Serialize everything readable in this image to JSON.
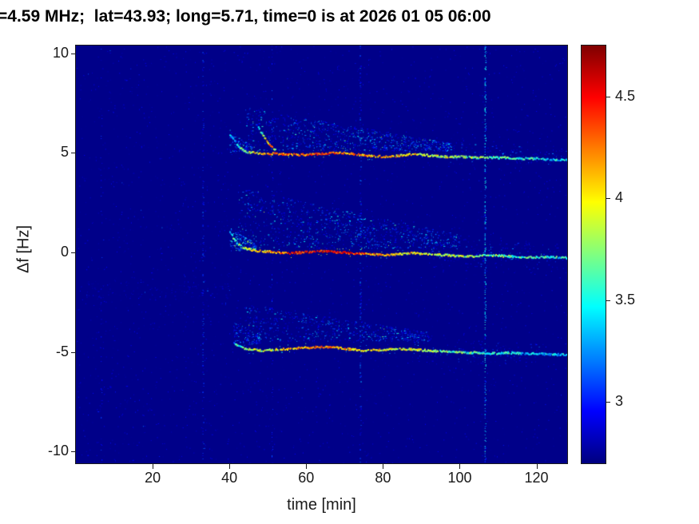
{
  "chart_data": {
    "type": "heatmap",
    "title": "=4.59 MHz;  lat=43.93; long=5.71, time=0 is at 2026 01 05 06:00",
    "xlabel": "time [min]",
    "ylabel": "Δf [Hz]",
    "xlim": [
      0,
      128
    ],
    "ylim": [
      -10.6,
      10.4
    ],
    "xticks": [
      20,
      40,
      60,
      80,
      100,
      120
    ],
    "yticks": [
      10,
      5,
      0,
      -5,
      -10
    ],
    "grid": false,
    "colorbar": {
      "position": "right",
      "colormap": "jet",
      "clim": [
        2.7,
        4.75
      ],
      "ticks": [
        3,
        3.5,
        4,
        4.5
      ]
    },
    "noise": {
      "count": 2600,
      "v": [
        2.72,
        3.0
      ]
    },
    "vertical_lines": [
      {
        "x": 6.5,
        "density": 0.1,
        "v": [
          2.8,
          3.1
        ]
      },
      {
        "x": 33,
        "density": 0.22,
        "v": [
          2.8,
          3.2
        ]
      },
      {
        "x": 51,
        "density": 0.1,
        "v": [
          2.8,
          3.15
        ]
      },
      {
        "x": 74,
        "density": 0.25,
        "v": [
          2.8,
          3.3
        ]
      },
      {
        "x": 106.5,
        "density": 0.5,
        "v": [
          2.9,
          3.6
        ]
      }
    ],
    "clouds": [
      {
        "t": [
          44,
          98
        ],
        "f_bottom": 5.1,
        "f_top_start": 7.3,
        "f_top_end": 5.5,
        "count": 850,
        "v": [
          2.85,
          3.7
        ]
      },
      {
        "t": [
          42,
          100
        ],
        "f_bottom": 0.2,
        "f_top_start": 3.3,
        "f_top_end": 0.9,
        "count": 950,
        "v": [
          2.85,
          3.7
        ]
      },
      {
        "t": [
          44,
          92
        ],
        "f_bottom": -4.45,
        "f_top_start": -2.6,
        "f_top_end": -4.0,
        "count": 600,
        "v": [
          2.85,
          3.6
        ]
      },
      {
        "t": [
          95,
          128
        ],
        "f_bottom": 4.45,
        "f_top_start": 5.6,
        "f_top_end": 5.2,
        "count": 130,
        "v": [
          2.8,
          3.3
        ]
      },
      {
        "t": [
          92,
          128
        ],
        "f_bottom": -0.9,
        "f_top_start": 0.8,
        "f_top_end": 0.4,
        "count": 140,
        "v": [
          2.8,
          3.3
        ]
      },
      {
        "t": [
          88,
          122
        ],
        "f_bottom": -5.6,
        "f_top_start": -4.2,
        "f_top_end": -4.6,
        "count": 110,
        "v": [
          2.8,
          3.3
        ]
      },
      {
        "t": [
          40,
          47
        ],
        "f_bottom": 0.1,
        "f_top_start": 1.3,
        "f_top_end": 0.4,
        "count": 160,
        "v": [
          3.0,
          3.9
        ]
      },
      {
        "t": [
          40,
          46
        ],
        "f_bottom": 5.05,
        "f_top_start": 6.2,
        "f_top_end": 5.3,
        "count": 100,
        "v": [
          2.9,
          3.6
        ]
      },
      {
        "t": [
          41,
          48
        ],
        "f_bottom": -4.6,
        "f_top_start": -3.4,
        "f_top_end": -4.2,
        "count": 110,
        "v": [
          2.9,
          3.5
        ]
      },
      {
        "t": [
          2,
          40
        ],
        "f_bottom": -2.3,
        "f_top_start": -1.4,
        "f_top_end": -1.5,
        "count": 130,
        "v": [
          2.75,
          3.05
        ]
      },
      {
        "t": [
          2,
          40
        ],
        "f_bottom": -10.4,
        "f_top_start": 10.3,
        "f_top_end": 10.3,
        "count": 180,
        "v": [
          2.75,
          3.05
        ]
      }
    ],
    "traces": [
      {
        "name": "upper-doppler-trace",
        "points": [
          [
            40,
            5.95,
            3.2
          ],
          [
            42,
            5.4,
            3.5
          ],
          [
            44,
            5.1,
            3.7
          ],
          [
            48,
            5.0,
            4.05
          ],
          [
            52,
            5.0,
            4.25
          ],
          [
            56,
            4.95,
            4.3
          ],
          [
            60,
            4.95,
            4.3
          ],
          [
            64,
            5.0,
            4.3
          ],
          [
            68,
            5.05,
            4.25
          ],
          [
            72,
            5.0,
            4.2
          ],
          [
            76,
            4.9,
            4.15
          ],
          [
            80,
            4.85,
            4.2
          ],
          [
            84,
            4.9,
            4.05
          ],
          [
            88,
            5.0,
            4.0
          ],
          [
            92,
            4.9,
            3.9
          ],
          [
            96,
            4.85,
            3.85
          ],
          [
            100,
            4.85,
            3.8
          ],
          [
            104,
            4.8,
            3.7
          ],
          [
            108,
            4.8,
            3.65
          ],
          [
            112,
            4.8,
            3.6
          ],
          [
            116,
            4.75,
            3.55
          ],
          [
            120,
            4.75,
            3.5
          ],
          [
            124,
            4.7,
            3.45
          ],
          [
            128,
            4.7,
            3.4
          ]
        ]
      },
      {
        "name": "upper-fold-segment",
        "points": [
          [
            47,
            6.45,
            3.2
          ],
          [
            48,
            6.1,
            3.6
          ],
          [
            49,
            5.8,
            3.9
          ],
          [
            50,
            5.5,
            4.15
          ],
          [
            51,
            5.3,
            4.1
          ],
          [
            52,
            5.15,
            3.9
          ]
        ]
      },
      {
        "name": "center-doppler-trace",
        "points": [
          [
            40,
            1.1,
            3.3
          ],
          [
            41,
            0.7,
            3.6
          ],
          [
            42,
            0.45,
            3.7
          ],
          [
            44,
            0.25,
            3.8
          ],
          [
            46,
            0.15,
            3.9
          ],
          [
            48,
            0.1,
            4.0
          ],
          [
            52,
            0.05,
            4.2
          ],
          [
            56,
            0.0,
            4.4
          ],
          [
            60,
            0.05,
            4.5
          ],
          [
            64,
            0.1,
            4.5
          ],
          [
            68,
            0.05,
            4.45
          ],
          [
            72,
            0.0,
            4.4
          ],
          [
            76,
            -0.05,
            4.2
          ],
          [
            80,
            -0.1,
            4.1
          ],
          [
            84,
            -0.05,
            4.0
          ],
          [
            88,
            0.0,
            4.0
          ],
          [
            92,
            -0.05,
            3.9
          ],
          [
            96,
            -0.1,
            3.85
          ],
          [
            100,
            -0.15,
            3.8
          ],
          [
            104,
            -0.15,
            3.75
          ],
          [
            108,
            -0.1,
            3.7
          ],
          [
            112,
            -0.15,
            3.65
          ],
          [
            116,
            -0.2,
            3.6
          ],
          [
            120,
            -0.2,
            3.55
          ],
          [
            124,
            -0.2,
            3.5
          ],
          [
            128,
            -0.25,
            3.45
          ]
        ]
      },
      {
        "name": "lower-doppler-trace",
        "points": [
          [
            41,
            -4.5,
            3.3
          ],
          [
            42,
            -4.65,
            3.5
          ],
          [
            44,
            -4.8,
            3.7
          ],
          [
            48,
            -4.9,
            3.8
          ],
          [
            52,
            -4.85,
            3.9
          ],
          [
            56,
            -4.8,
            4.1
          ],
          [
            60,
            -4.75,
            4.2
          ],
          [
            64,
            -4.7,
            4.25
          ],
          [
            68,
            -4.75,
            4.2
          ],
          [
            72,
            -4.85,
            4.1
          ],
          [
            76,
            -4.9,
            4.0
          ],
          [
            80,
            -4.85,
            3.95
          ],
          [
            84,
            -4.8,
            3.9
          ],
          [
            88,
            -4.85,
            3.85
          ],
          [
            92,
            -4.9,
            3.8
          ],
          [
            96,
            -4.95,
            3.7
          ],
          [
            100,
            -5.0,
            3.65
          ],
          [
            104,
            -5.0,
            3.6
          ],
          [
            108,
            -5.05,
            3.55
          ],
          [
            112,
            -5.0,
            3.5
          ],
          [
            116,
            -5.05,
            3.45
          ],
          [
            120,
            -5.05,
            3.4
          ],
          [
            124,
            -5.1,
            3.4
          ],
          [
            128,
            -5.1,
            3.35
          ]
        ]
      }
    ]
  }
}
